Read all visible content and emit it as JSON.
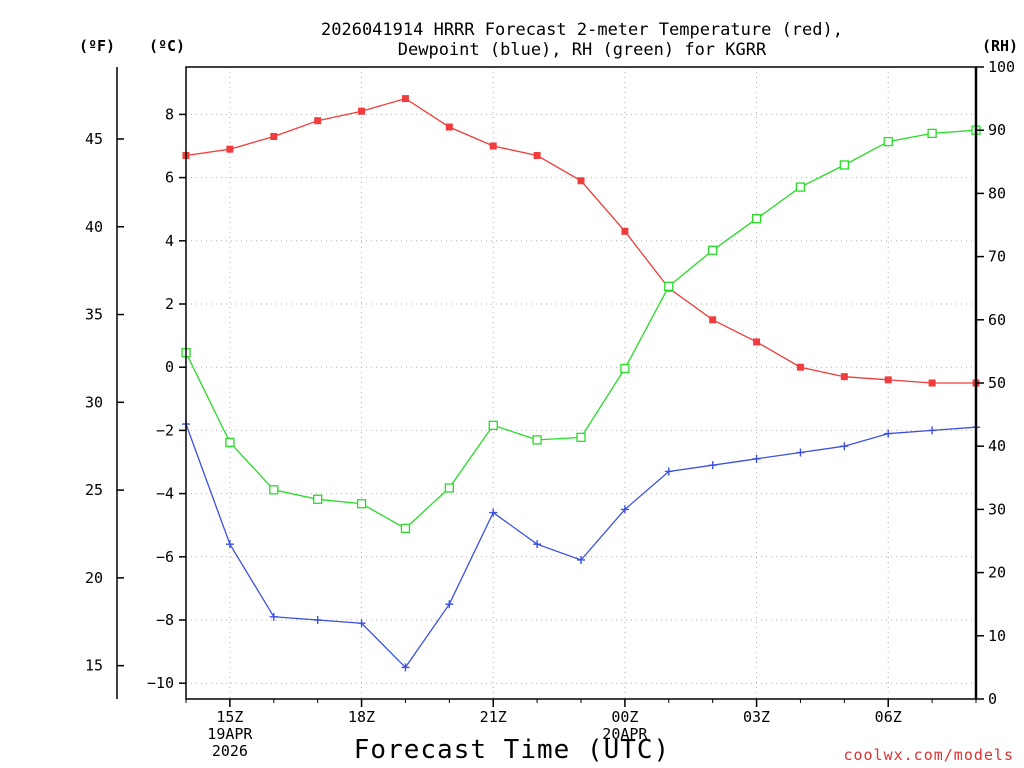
{
  "chart_data": {
    "type": "line",
    "title_line1": "2026041914 HRRR Forecast 2-meter Temperature (red),",
    "title_line2": "Dewpoint (blue), RH (green) for KGRR",
    "xlabel": "Forecast Time (UTC)",
    "credit": "coolwx.com/models",
    "left_outer_axis": {
      "unit": "(ºF)",
      "ticks": [
        15,
        20,
        25,
        30,
        35,
        40,
        45
      ]
    },
    "left_axis": {
      "unit": "(ºC)",
      "ylim": [
        -10.5,
        9.5
      ],
      "ticks": [
        -10,
        -8,
        -6,
        -4,
        -2,
        0,
        2,
        4,
        6,
        8
      ],
      "tick_labels": [
        "−10",
        "−8",
        "−6",
        "−4",
        "−2",
        "0",
        "2",
        "4",
        "6",
        "8"
      ]
    },
    "right_axis": {
      "unit": "(RH)",
      "ylim": [
        0,
        100
      ],
      "ticks": [
        0,
        10,
        20,
        30,
        40,
        50,
        60,
        70,
        80,
        90,
        100
      ]
    },
    "x_hours": [
      14,
      15,
      16,
      17,
      18,
      19,
      20,
      21,
      22,
      23,
      24,
      25,
      26,
      27,
      28,
      29,
      30,
      31,
      32
    ],
    "x_ticks": [
      {
        "hour": 15,
        "lines": [
          "15Z",
          "19APR",
          "2026"
        ]
      },
      {
        "hour": 18,
        "lines": [
          "18Z"
        ]
      },
      {
        "hour": 21,
        "lines": [
          "21Z"
        ]
      },
      {
        "hour": 24,
        "lines": [
          "00Z",
          "20APR"
        ]
      },
      {
        "hour": 27,
        "lines": [
          "03Z"
        ]
      },
      {
        "hour": 30,
        "lines": [
          "06Z"
        ]
      }
    ],
    "series": [
      {
        "name": "2-meter Temperature",
        "axis": "C",
        "color": "#f03c3c",
        "marker": "filled-square",
        "values": [
          6.7,
          6.9,
          7.3,
          7.8,
          8.1,
          8.5,
          7.6,
          7.0,
          6.7,
          5.9,
          4.3,
          2.5,
          1.5,
          0.8,
          0.0,
          -0.3,
          -0.4,
          -0.5,
          -0.5
        ]
      },
      {
        "name": "Dewpoint",
        "axis": "C",
        "color": "#3c50e0",
        "marker": "plus",
        "values": [
          -1.8,
          -5.6,
          -7.9,
          -8.0,
          -8.1,
          -9.5,
          -7.5,
          -4.6,
          -5.6,
          -6.1,
          -4.5,
          -3.3,
          -3.1,
          -2.9,
          -2.7,
          -2.5,
          -2.1,
          -2.0,
          -1.9
        ]
      },
      {
        "name": "RH",
        "axis": "RH",
        "color": "#28dc28",
        "marker": "open-square",
        "values": [
          54.8,
          40.6,
          33.1,
          31.6,
          30.9,
          27.0,
          33.4,
          43.3,
          41.0,
          41.4,
          52.3,
          65.3,
          71.0,
          76.0,
          81.0,
          84.5,
          88.2,
          89.5,
          90.0
        ]
      }
    ]
  }
}
